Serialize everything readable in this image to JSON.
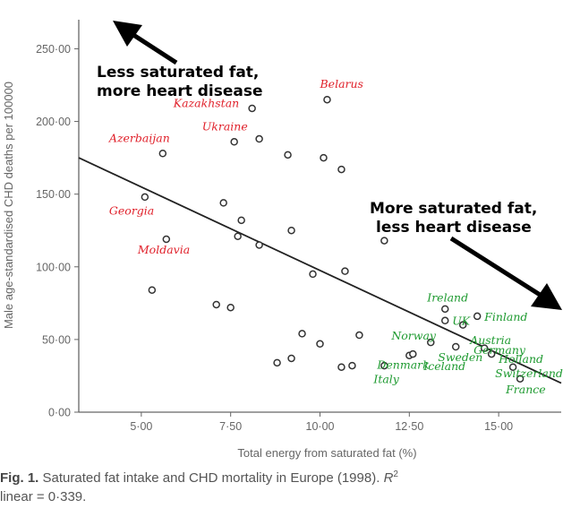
{
  "chart_data": {
    "type": "scatter",
    "xlabel": "Total energy from saturated fat (%)",
    "ylabel": "Male age-standardised CHD deaths per 100000",
    "xlim": [
      3.25,
      16.75
    ],
    "ylim": [
      0,
      270
    ],
    "xticks": [
      "5·00",
      "7·50",
      "10·00",
      "12·50",
      "15·00"
    ],
    "xtick_values": [
      5,
      7.5,
      10,
      12.5,
      15
    ],
    "yticks": [
      "0·00",
      "50·00",
      "100·00",
      "150·00",
      "200·00",
      "250·00"
    ],
    "ytick_values": [
      0,
      50,
      100,
      150,
      200,
      250
    ],
    "grid": false,
    "points": [
      {
        "x": 5.1,
        "y": 148
      },
      {
        "x": 5.3,
        "y": 84
      },
      {
        "x": 5.6,
        "y": 178
      },
      {
        "x": 5.7,
        "y": 119
      },
      {
        "x": 7.1,
        "y": 74
      },
      {
        "x": 7.3,
        "y": 144
      },
      {
        "x": 7.5,
        "y": 72
      },
      {
        "x": 7.6,
        "y": 186
      },
      {
        "x": 7.7,
        "y": 121
      },
      {
        "x": 7.8,
        "y": 132
      },
      {
        "x": 8.1,
        "y": 209
      },
      {
        "x": 8.3,
        "y": 188
      },
      {
        "x": 8.3,
        "y": 115
      },
      {
        "x": 8.8,
        "y": 34
      },
      {
        "x": 9.1,
        "y": 177
      },
      {
        "x": 9.2,
        "y": 125
      },
      {
        "x": 9.2,
        "y": 37
      },
      {
        "x": 9.5,
        "y": 54
      },
      {
        "x": 9.8,
        "y": 95
      },
      {
        "x": 10.0,
        "y": 47
      },
      {
        "x": 10.1,
        "y": 175
      },
      {
        "x": 10.2,
        "y": 215
      },
      {
        "x": 10.6,
        "y": 167
      },
      {
        "x": 10.6,
        "y": 31
      },
      {
        "x": 10.7,
        "y": 97
      },
      {
        "x": 10.9,
        "y": 32
      },
      {
        "x": 11.1,
        "y": 53
      },
      {
        "x": 11.8,
        "y": 118
      },
      {
        "x": 11.8,
        "y": 32
      },
      {
        "x": 12.5,
        "y": 39
      },
      {
        "x": 12.6,
        "y": 40
      },
      {
        "x": 13.1,
        "y": 48
      },
      {
        "x": 13.5,
        "y": 71
      },
      {
        "x": 13.5,
        "y": 63
      },
      {
        "x": 13.8,
        "y": 45
      },
      {
        "x": 14.0,
        "y": 60
      },
      {
        "x": 14.4,
        "y": 66
      },
      {
        "x": 14.6,
        "y": 44
      },
      {
        "x": 14.8,
        "y": 40
      },
      {
        "x": 15.4,
        "y": 31
      },
      {
        "x": 15.6,
        "y": 23
      }
    ],
    "trendline": {
      "x": [
        3.25,
        16.75
      ],
      "y": [
        175,
        20
      ]
    },
    "annotations": [
      {
        "text_lines": [
          "Less saturated fat,",
          "more heart disease"
        ],
        "arrow": "up-left"
      },
      {
        "text_lines": [
          "More saturated fat,",
          "less heart disease"
        ],
        "arrow": "down-right"
      }
    ],
    "country_labels": [
      {
        "text": "Belarus",
        "x": 10.0,
        "y": 223,
        "color": "#e0202a"
      },
      {
        "text": "Kazakhstan",
        "x": 5.9,
        "y": 210,
        "color": "#e0202a"
      },
      {
        "text": "Ukraine",
        "x": 6.7,
        "y": 194,
        "color": "#e0202a"
      },
      {
        "text": "Azerbaijan",
        "x": 4.1,
        "y": 186,
        "color": "#e0202a"
      },
      {
        "text": "Georgia",
        "x": 4.1,
        "y": 136,
        "color": "#e0202a"
      },
      {
        "text": "Moldavia",
        "x": 4.9,
        "y": 109,
        "color": "#e0202a"
      },
      {
        "text": "Ireland",
        "x": 13.0,
        "y": 76,
        "color": "#1e9a30"
      },
      {
        "text": "UK",
        "x": 13.7,
        "y": 60,
        "color": "#1e9a30"
      },
      {
        "text": "Finland",
        "x": 14.6,
        "y": 63,
        "color": "#1e9a30"
      },
      {
        "text": "Norway",
        "x": 12.0,
        "y": 50,
        "color": "#1e9a30"
      },
      {
        "text": "Austria",
        "x": 14.2,
        "y": 47,
        "color": "#1e9a30"
      },
      {
        "text": "Germany",
        "x": 14.3,
        "y": 40,
        "color": "#1e9a30"
      },
      {
        "text": "Sweden",
        "x": 13.3,
        "y": 35,
        "color": "#1e9a30"
      },
      {
        "text": "Holland",
        "x": 15.0,
        "y": 34,
        "color": "#1e9a30"
      },
      {
        "text": "Denmark",
        "x": 11.6,
        "y": 30,
        "color": "#1e9a30"
      },
      {
        "text": "Iceland",
        "x": 12.9,
        "y": 29,
        "color": "#1e9a30"
      },
      {
        "text": "Switzerland",
        "x": 14.9,
        "y": 24,
        "color": "#1e9a30"
      },
      {
        "text": "Italy",
        "x": 11.5,
        "y": 20,
        "color": "#1e9a30"
      },
      {
        "text": "France",
        "x": 15.2,
        "y": 13,
        "color": "#1e9a30"
      }
    ]
  },
  "caption": {
    "fig_label": "Fig. 1.",
    "text": "Saturated fat intake and CHD mortality in Europe (1998).",
    "r2_symbol": "R",
    "r2_sup": "2",
    "line2": "linear = 0·339."
  }
}
